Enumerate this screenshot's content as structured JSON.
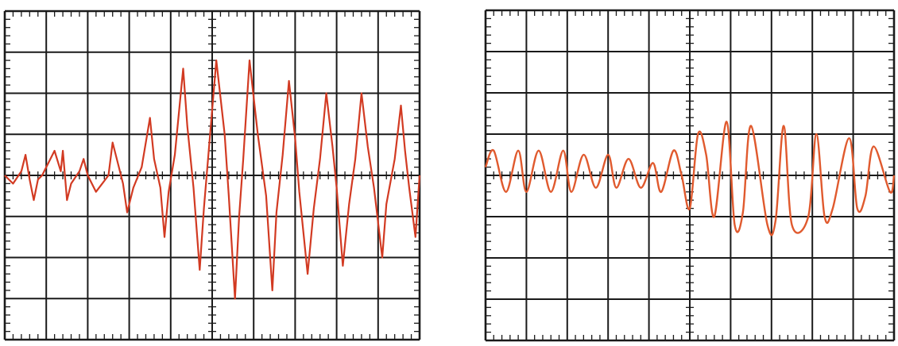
{
  "chart_data": [
    {
      "type": "line",
      "title": "",
      "xlabel": "",
      "ylabel": "",
      "xlim": [
        0,
        10
      ],
      "ylim": [
        -4,
        4
      ],
      "grid": true,
      "divisions": {
        "x": 10,
        "y": 8
      },
      "series": [
        {
          "color": "#d23a22",
          "x": [
            0,
            0.2,
            0.4,
            0.5,
            0.55,
            0.6,
            0.7,
            0.8,
            0.9,
            1.2,
            1.35,
            1.4,
            1.45,
            1.5,
            1.6,
            1.8,
            1.9,
            2.0,
            2.2,
            2.5,
            2.6,
            2.75,
            2.85,
            2.95,
            3.1,
            3.3,
            3.5,
            3.6,
            3.75,
            3.85,
            3.95,
            4.1,
            4.3,
            4.4,
            4.55,
            4.7,
            4.8,
            4.9,
            5.1,
            5.3,
            5.4,
            5.55,
            5.65,
            5.75,
            5.9,
            6.1,
            6.3,
            6.45,
            6.55,
            6.7,
            6.85,
            7.0,
            7.1,
            7.3,
            7.45,
            7.6,
            7.75,
            7.9,
            8.0,
            8.15,
            8.3,
            8.45,
            8.6,
            8.75,
            8.9,
            9.1,
            9.2,
            9.4,
            9.55,
            9.65,
            9.75,
            9.9,
            10.0
          ],
          "y": [
            0,
            -0.2,
            0.1,
            0.5,
            0.2,
            -0.1,
            -0.6,
            -0.1,
            0,
            0.6,
            0.1,
            0.6,
            0,
            -0.6,
            -0.2,
            0.1,
            0.4,
            0,
            -0.4,
            0,
            0.8,
            0.2,
            -0.2,
            -0.9,
            -0.3,
            0.2,
            1.4,
            0.4,
            -0.3,
            -1.5,
            -0.4,
            0.5,
            2.6,
            1.2,
            -0.3,
            -2.3,
            -0.8,
            0.4,
            2.8,
            1.0,
            -0.5,
            -3.0,
            -1.0,
            0.4,
            2.8,
            1.0,
            -0.5,
            -2.8,
            -0.9,
            0.5,
            2.3,
            0.9,
            -0.4,
            -2.4,
            -0.8,
            0.4,
            2.0,
            0.7,
            -0.3,
            -2.2,
            -0.7,
            0.4,
            2.0,
            0.7,
            -0.3,
            -2.0,
            -0.7,
            0.4,
            1.7,
            0.6,
            -0.3,
            -1.5,
            0
          ]
        }
      ]
    },
    {
      "type": "line",
      "title": "",
      "xlabel": "",
      "ylabel": "",
      "xlim": [
        0,
        10
      ],
      "ylim": [
        -4,
        4
      ],
      "grid": true,
      "divisions": {
        "x": 10,
        "y": 8
      },
      "series": [
        {
          "color": "#e05a2e",
          "x": [
            0,
            0.2,
            0.5,
            0.8,
            1.0,
            1.3,
            1.6,
            1.9,
            2.1,
            2.4,
            2.7,
            3.0,
            3.2,
            3.5,
            3.8,
            4.1,
            4.3,
            4.6,
            4.8,
            5.0,
            5.2,
            5.4,
            5.6,
            5.9,
            6.1,
            6.3,
            6.5,
            6.9,
            7.1,
            7.3,
            7.5,
            7.9,
            8.1,
            8.3,
            8.5,
            8.9,
            9.1,
            9.3,
            9.5,
            9.9,
            10.0
          ],
          "y": [
            0.2,
            0.6,
            -0.4,
            0.6,
            -0.4,
            0.6,
            -0.4,
            0.6,
            -0.4,
            0.5,
            -0.3,
            0.5,
            -0.3,
            0.4,
            -0.3,
            0.3,
            -0.4,
            0.6,
            0,
            -0.8,
            1.0,
            0.5,
            -1.0,
            1.3,
            -1.2,
            -0.9,
            1.2,
            -1.2,
            -1.1,
            1.2,
            -1.2,
            -1.0,
            1.0,
            -1.0,
            -0.8,
            0.9,
            -0.8,
            -0.5,
            0.7,
            -0.4,
            0
          ]
        }
      ]
    }
  ]
}
